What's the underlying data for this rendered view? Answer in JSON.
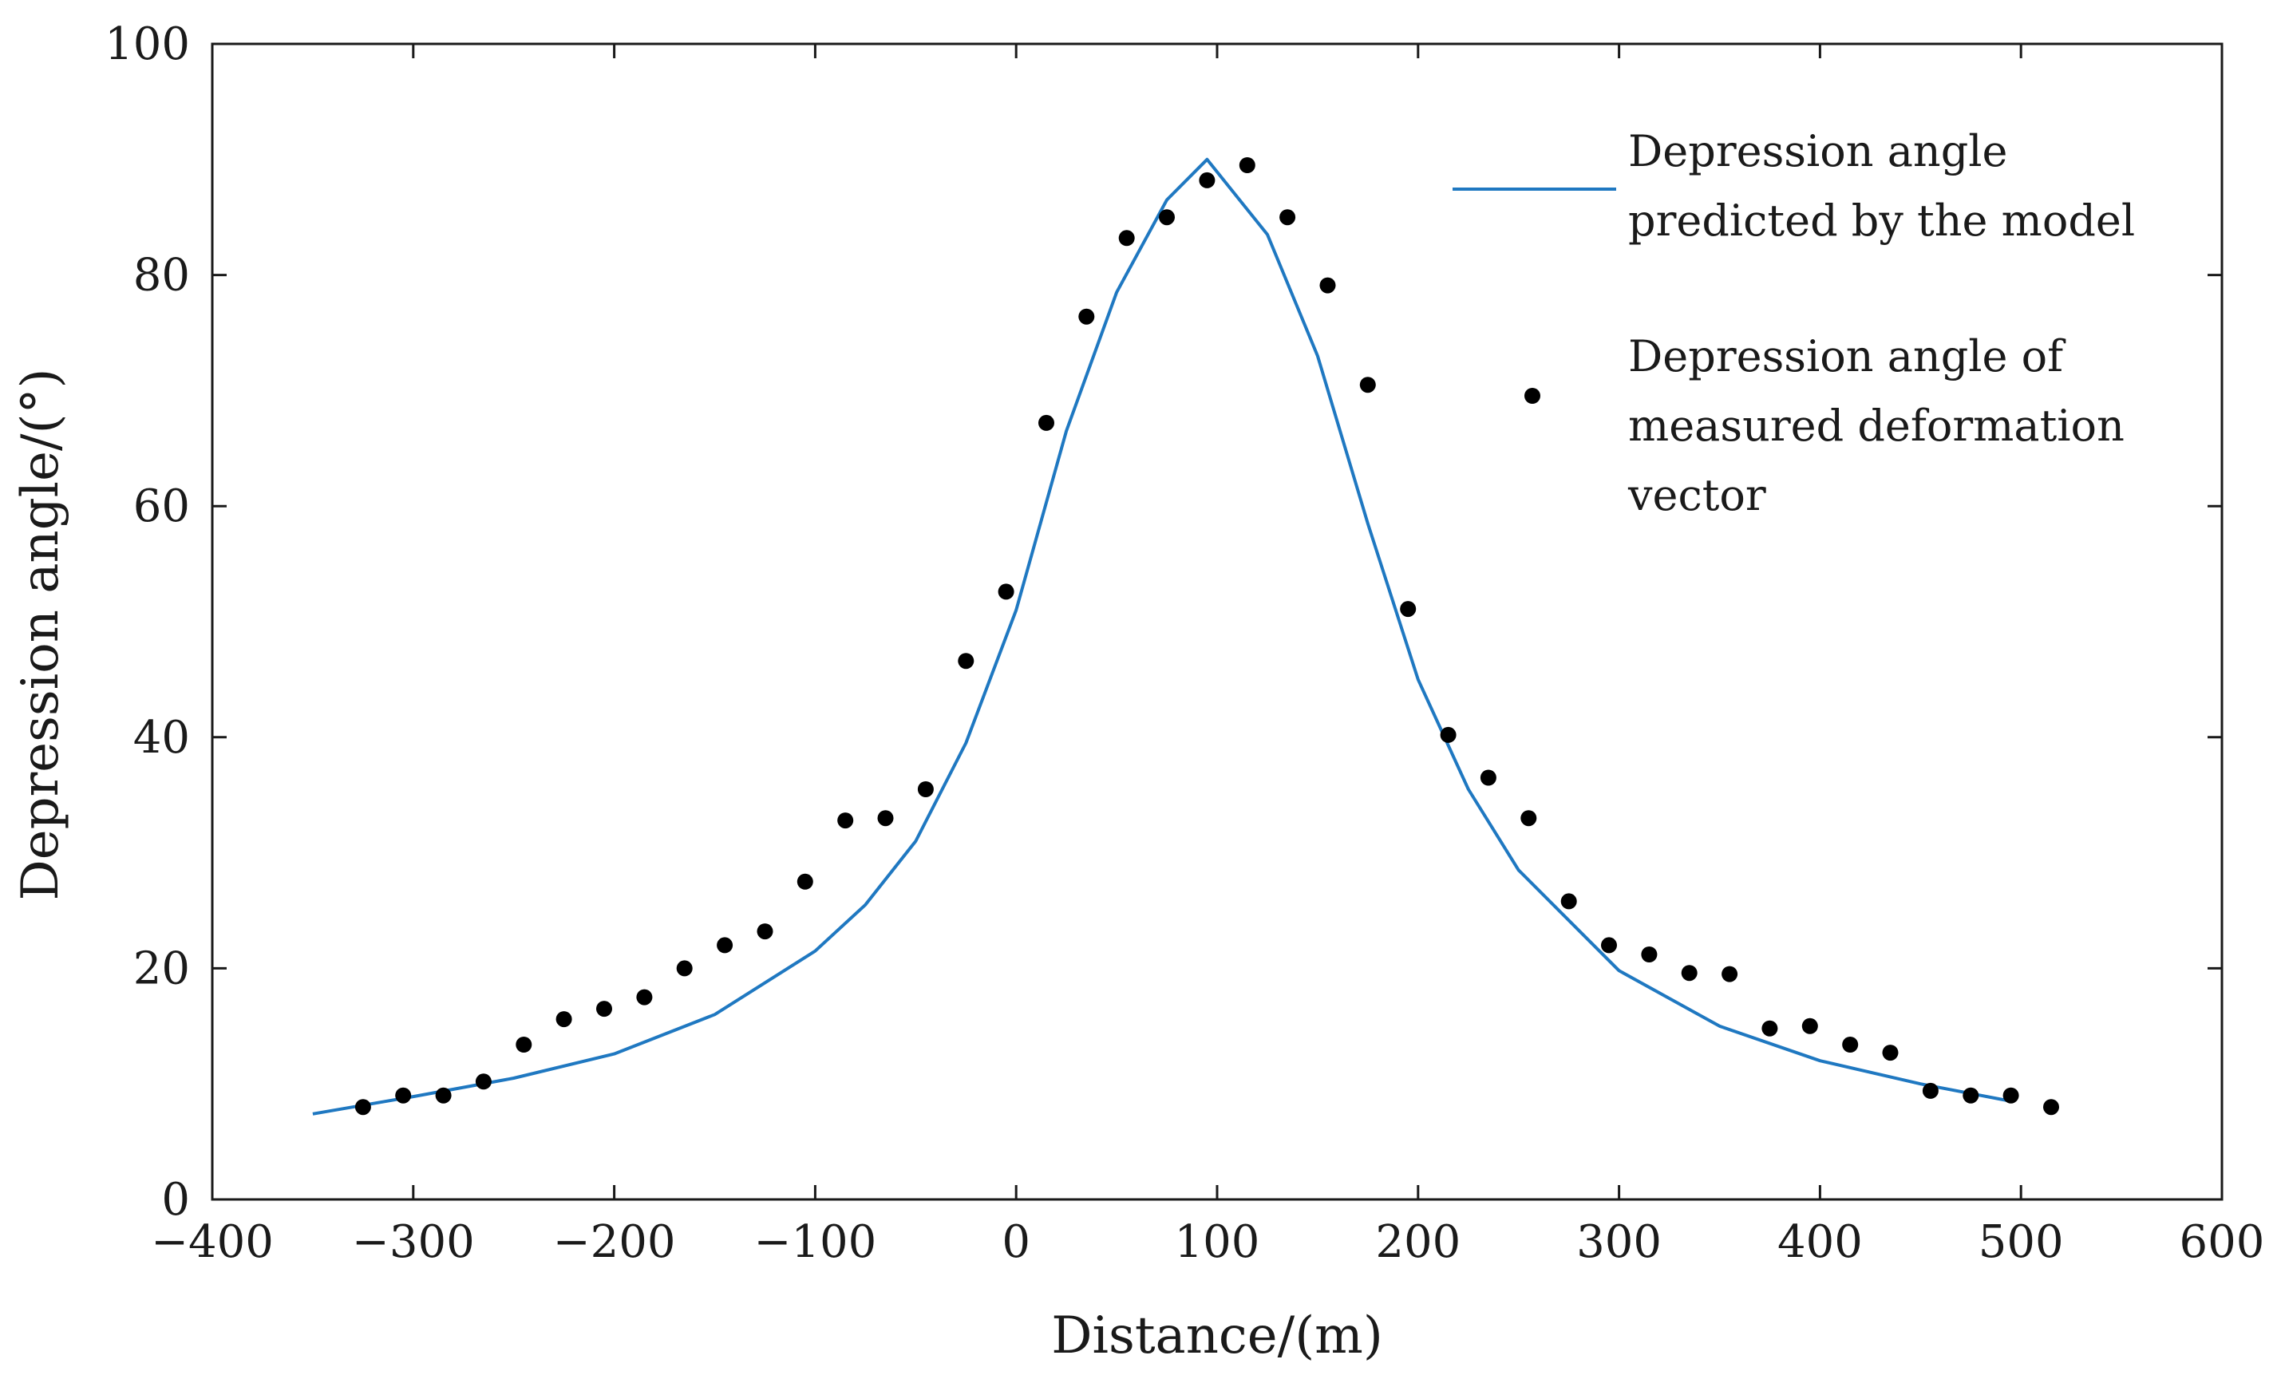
{
  "chart_data": {
    "type": "line",
    "title": "",
    "xlabel": "Distance/(m)",
    "ylabel": "Depression angle/(°)",
    "xlim": [
      -400,
      600
    ],
    "ylim": [
      0,
      100
    ],
    "xticks": [
      -400,
      -300,
      -200,
      -100,
      0,
      100,
      200,
      300,
      400,
      500,
      600
    ],
    "yticks": [
      0,
      20,
      40,
      60,
      80,
      100
    ],
    "xtick_labels": [
      "−400",
      "−300",
      "−200",
      "−100",
      "0",
      "100",
      "200",
      "300",
      "400",
      "500",
      "600"
    ],
    "ytick_labels": [
      "0",
      "20",
      "40",
      "60",
      "80",
      "100"
    ],
    "grid": false,
    "legend_position": "top-right",
    "series": [
      {
        "name": "Depression angle predicted by the model",
        "legend_lines": [
          "Depression angle",
          "predicted by the model"
        ],
        "kind": "line",
        "color": "#1f78c1",
        "x": [
          -350,
          -300,
          -250,
          -200,
          -150,
          -100,
          -75,
          -50,
          -25,
          0,
          25,
          50,
          75,
          95,
          125,
          150,
          175,
          200,
          225,
          250,
          300,
          350,
          400,
          450,
          495
        ],
        "y": [
          7.4,
          8.9,
          10.5,
          12.6,
          16.0,
          21.5,
          25.5,
          31.0,
          39.5,
          51.0,
          66.5,
          78.5,
          86.5,
          90.0,
          83.5,
          73.0,
          58.5,
          45.0,
          35.5,
          28.5,
          19.8,
          15.0,
          12.0,
          10.0,
          8.5
        ]
      },
      {
        "name": "Depression angle of measured deformation vector",
        "legend_lines": [
          "Depression angle of",
          "measured  deformation",
          "vector"
        ],
        "kind": "scatter",
        "color": "#000000",
        "x": [
          -325,
          -305,
          -285,
          -265,
          -245,
          -225,
          -205,
          -185,
          -165,
          -145,
          -125,
          -105,
          -85,
          -65,
          -45,
          -25,
          -5,
          15,
          35,
          55,
          75,
          95,
          115,
          135,
          155,
          175,
          195,
          215,
          235,
          255,
          275,
          295,
          315,
          335,
          355,
          375,
          395,
          415,
          435,
          455,
          475,
          495,
          515
        ],
        "y": [
          8.0,
          9.0,
          9.0,
          10.2,
          13.4,
          15.6,
          16.5,
          17.5,
          20.0,
          22.0,
          23.2,
          27.5,
          32.8,
          33.0,
          35.5,
          46.6,
          52.6,
          67.2,
          76.4,
          83.2,
          85.0,
          88.2,
          89.5,
          85.0,
          79.1,
          70.5,
          51.1,
          40.2,
          36.5,
          33.0,
          25.8,
          22.0,
          21.2,
          19.6,
          19.5,
          14.8,
          15.0,
          13.4,
          12.7,
          9.4,
          9.0,
          9.0,
          8.0
        ]
      }
    ]
  }
}
